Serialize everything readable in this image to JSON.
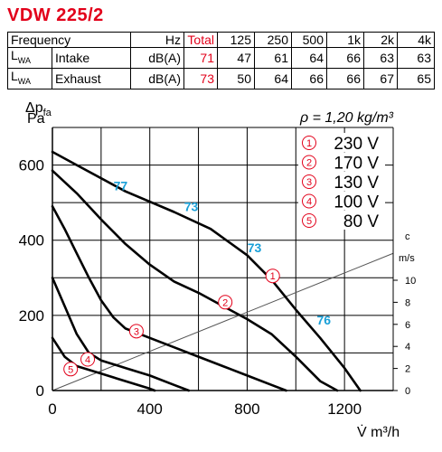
{
  "title": "VDW 225/2",
  "noise_table": {
    "header": [
      "Frequency",
      "Hz",
      "Total",
      "125",
      "250",
      "500",
      "1k",
      "2k",
      "4k"
    ],
    "rows": [
      {
        "label_main": "L",
        "label_sub": "WA",
        "name": "Intake",
        "unit": "dB(A)",
        "total": "71",
        "values": [
          "47",
          "61",
          "64",
          "66",
          "63",
          "63"
        ]
      },
      {
        "label_main": "L",
        "label_sub": "WA",
        "name": "Exhaust",
        "unit": "dB(A)",
        "total": "73",
        "values": [
          "50",
          "64",
          "66",
          "66",
          "67",
          "65"
        ]
      }
    ]
  },
  "chart_data": {
    "type": "line",
    "title": "",
    "xlabel": "V̇ m³/h",
    "ylabel": "Δpfa Pa",
    "xlim": [
      0,
      1400
    ],
    "ylim": [
      0,
      700
    ],
    "xticks": [
      "0",
      "400",
      "800",
      "1200"
    ],
    "yticks": [
      "0",
      "200",
      "400",
      "600"
    ],
    "density_note": "ρ = 1,20 kg/m³",
    "right_axis": {
      "label": "c",
      "unit": "m/s",
      "ticks": [
        "0",
        "2",
        "4",
        "6",
        "8",
        "10"
      ]
    },
    "series": [
      {
        "name": "230 V",
        "number": "1",
        "points": [
          [
            0,
            635
          ],
          [
            100,
            600
          ],
          [
            300,
            530
          ],
          [
            500,
            475
          ],
          [
            650,
            430
          ],
          [
            800,
            360
          ],
          [
            900,
            295
          ],
          [
            1000,
            215
          ],
          [
            1100,
            140
          ],
          [
            1200,
            60
          ],
          [
            1265,
            0
          ]
        ]
      },
      {
        "name": "170 V",
        "number": "2",
        "points": [
          [
            0,
            585
          ],
          [
            100,
            525
          ],
          [
            200,
            455
          ],
          [
            300,
            390
          ],
          [
            400,
            335
          ],
          [
            500,
            290
          ],
          [
            600,
            260
          ],
          [
            700,
            225
          ],
          [
            800,
            190
          ],
          [
            900,
            150
          ],
          [
            1000,
            90
          ],
          [
            1100,
            25
          ],
          [
            1170,
            0
          ]
        ]
      },
      {
        "name": "130 V",
        "number": "3",
        "points": [
          [
            0,
            490
          ],
          [
            50,
            430
          ],
          [
            100,
            365
          ],
          [
            150,
            300
          ],
          [
            200,
            240
          ],
          [
            250,
            195
          ],
          [
            300,
            165
          ],
          [
            400,
            140
          ],
          [
            500,
            115
          ],
          [
            600,
            90
          ],
          [
            700,
            65
          ],
          [
            800,
            40
          ],
          [
            900,
            15
          ],
          [
            960,
            0
          ]
        ]
      },
      {
        "name": "100 V",
        "number": "4",
        "points": [
          [
            0,
            300
          ],
          [
            50,
            225
          ],
          [
            100,
            150
          ],
          [
            150,
            100
          ],
          [
            200,
            80
          ],
          [
            300,
            60
          ],
          [
            400,
            40
          ],
          [
            500,
            15
          ],
          [
            560,
            0
          ]
        ]
      },
      {
        "name": "80 V",
        "number": "5",
        "points": [
          [
            0,
            140
          ],
          [
            50,
            90
          ],
          [
            100,
            65
          ],
          [
            150,
            55
          ],
          [
            200,
            45
          ],
          [
            300,
            25
          ],
          [
            400,
            5
          ],
          [
            420,
            0
          ]
        ]
      }
    ],
    "system_line": {
      "points": [
        [
          0,
          0
        ],
        [
          1400,
          365
        ]
      ]
    },
    "curve_markers": [
      {
        "number": "1",
        "x": 905,
        "y": 305
      },
      {
        "number": "2",
        "x": 710,
        "y": 235
      },
      {
        "number": "3",
        "x": 345,
        "y": 158
      },
      {
        "number": "4",
        "x": 145,
        "y": 83
      },
      {
        "number": "5",
        "x": 75,
        "y": 57
      }
    ],
    "sound_labels": [
      {
        "text": "77",
        "x": 280,
        "y": 545
      },
      {
        "text": "73",
        "x": 570,
        "y": 490
      },
      {
        "text": "73",
        "x": 830,
        "y": 380
      },
      {
        "text": "76",
        "x": 1115,
        "y": 188
      }
    ],
    "grid": true,
    "legend": "top-right",
    "colors": {
      "curve": "#000000",
      "accent": "#e2001a",
      "sound_label": "#1aa0d8",
      "system_line": "#555555"
    }
  }
}
